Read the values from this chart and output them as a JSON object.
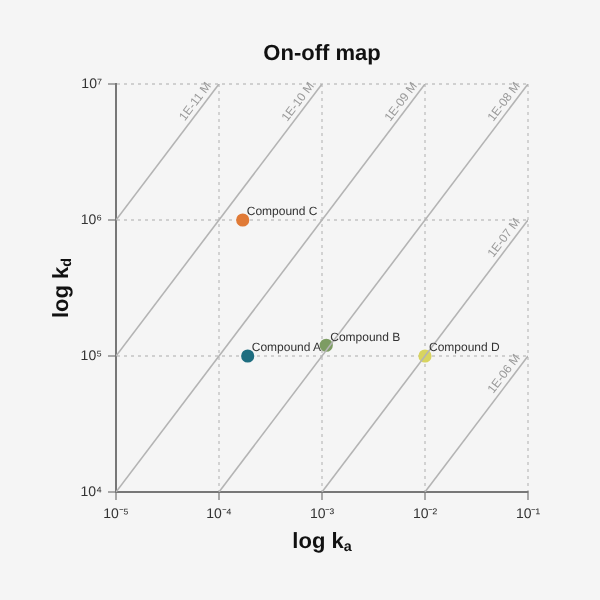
{
  "chart_data": {
    "type": "scatter",
    "title": "On-off map",
    "xlabel": "log k$_{a}$",
    "ylabel": "log k$_{d}$",
    "log": "xy",
    "grid": true,
    "legend": false,
    "marker": "circle",
    "xlim": [
      1e-05,
      0.1
    ],
    "ylim": [
      10000.0,
      10000000.0
    ],
    "xticks": [
      {
        "value": 1e-05,
        "label": "10⁻⁵"
      },
      {
        "value": 0.0001,
        "label": "10⁻⁴"
      },
      {
        "value": 0.001,
        "label": "10⁻³"
      },
      {
        "value": 0.01,
        "label": "10⁻²"
      },
      {
        "value": 0.1,
        "label": "10⁻¹"
      }
    ],
    "yticks": [
      {
        "value": 10000.0,
        "label": "10⁴"
      },
      {
        "value": 100000.0,
        "label": "10⁵"
      },
      {
        "value": 1000000.0,
        "label": "10⁶"
      },
      {
        "value": 10000000.0,
        "label": "10⁷"
      }
    ],
    "series": [
      {
        "type": "line",
        "marker": "none",
        "name": "1E-11 M",
        "color": "#b4b4b4",
        "x": [
          1e-05,
          0.0001
        ],
        "values": [
          1000000.0,
          10000000.0
        ]
      },
      {
        "type": "line",
        "marker": "none",
        "name": "1E-10 M",
        "color": "#b4b4b4",
        "x": [
          1e-05,
          0.001
        ],
        "values": [
          100000.0,
          10000000.0
        ]
      },
      {
        "type": "line",
        "marker": "none",
        "name": "1E-09 M",
        "color": "#b4b4b4",
        "x": [
          1e-05,
          0.01
        ],
        "values": [
          10000.0,
          10000000.0
        ]
      },
      {
        "type": "line",
        "marker": "none",
        "name": "1E-08 M",
        "color": "#b4b4b4",
        "x": [
          0.0001,
          0.1
        ],
        "values": [
          10000.0,
          10000000.0
        ]
      },
      {
        "type": "line",
        "marker": "none",
        "name": "1E-07 M",
        "color": "#b4b4b4",
        "x": [
          0.001,
          0.1
        ],
        "values": [
          10000.0,
          1000000.0
        ]
      },
      {
        "type": "line",
        "marker": "none",
        "name": "1E-06 M",
        "color": "#b4b4b4",
        "x": [
          0.01,
          0.1
        ],
        "values": [
          10000.0,
          100000.0
        ]
      },
      {
        "name": "Compound A",
        "color": "#1f6e80",
        "x": [
          0.00019
        ],
        "values": [
          100000.0
        ]
      },
      {
        "name": "Compound B",
        "color": "#7d9c63",
        "x": [
          0.0011
        ],
        "values": [
          120000.0
        ]
      },
      {
        "name": "Compound C",
        "color": "#e07a36",
        "x": [
          0.00017
        ],
        "values": [
          1000000.0
        ]
      },
      {
        "name": "Compound D",
        "color": "#d8d460",
        "x": [
          0.01
        ],
        "values": [
          100000.0
        ]
      }
    ]
  }
}
